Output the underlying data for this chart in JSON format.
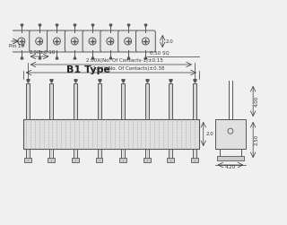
{
  "bg_color": "#f0f0f0",
  "title": "B1 Type",
  "dim_text1": "2.00X(No. Of Contacts)±0.38",
  "dim_text2": "2.00X(No. Of Contacts-1)±0.15",
  "dim_text3": "2.00±0.10",
  "dim_text4": "0.50 SQ",
  "dim_right1": "2.0",
  "dim_right2": "2.0",
  "dim_bottom1": "4.00",
  "dim_bottom2": "2.50",
  "dim_bottom3": "4.20",
  "pin_label": "Pin 1#",
  "n_pins": 8,
  "line_color": "#555555",
  "dim_color": "#333333"
}
